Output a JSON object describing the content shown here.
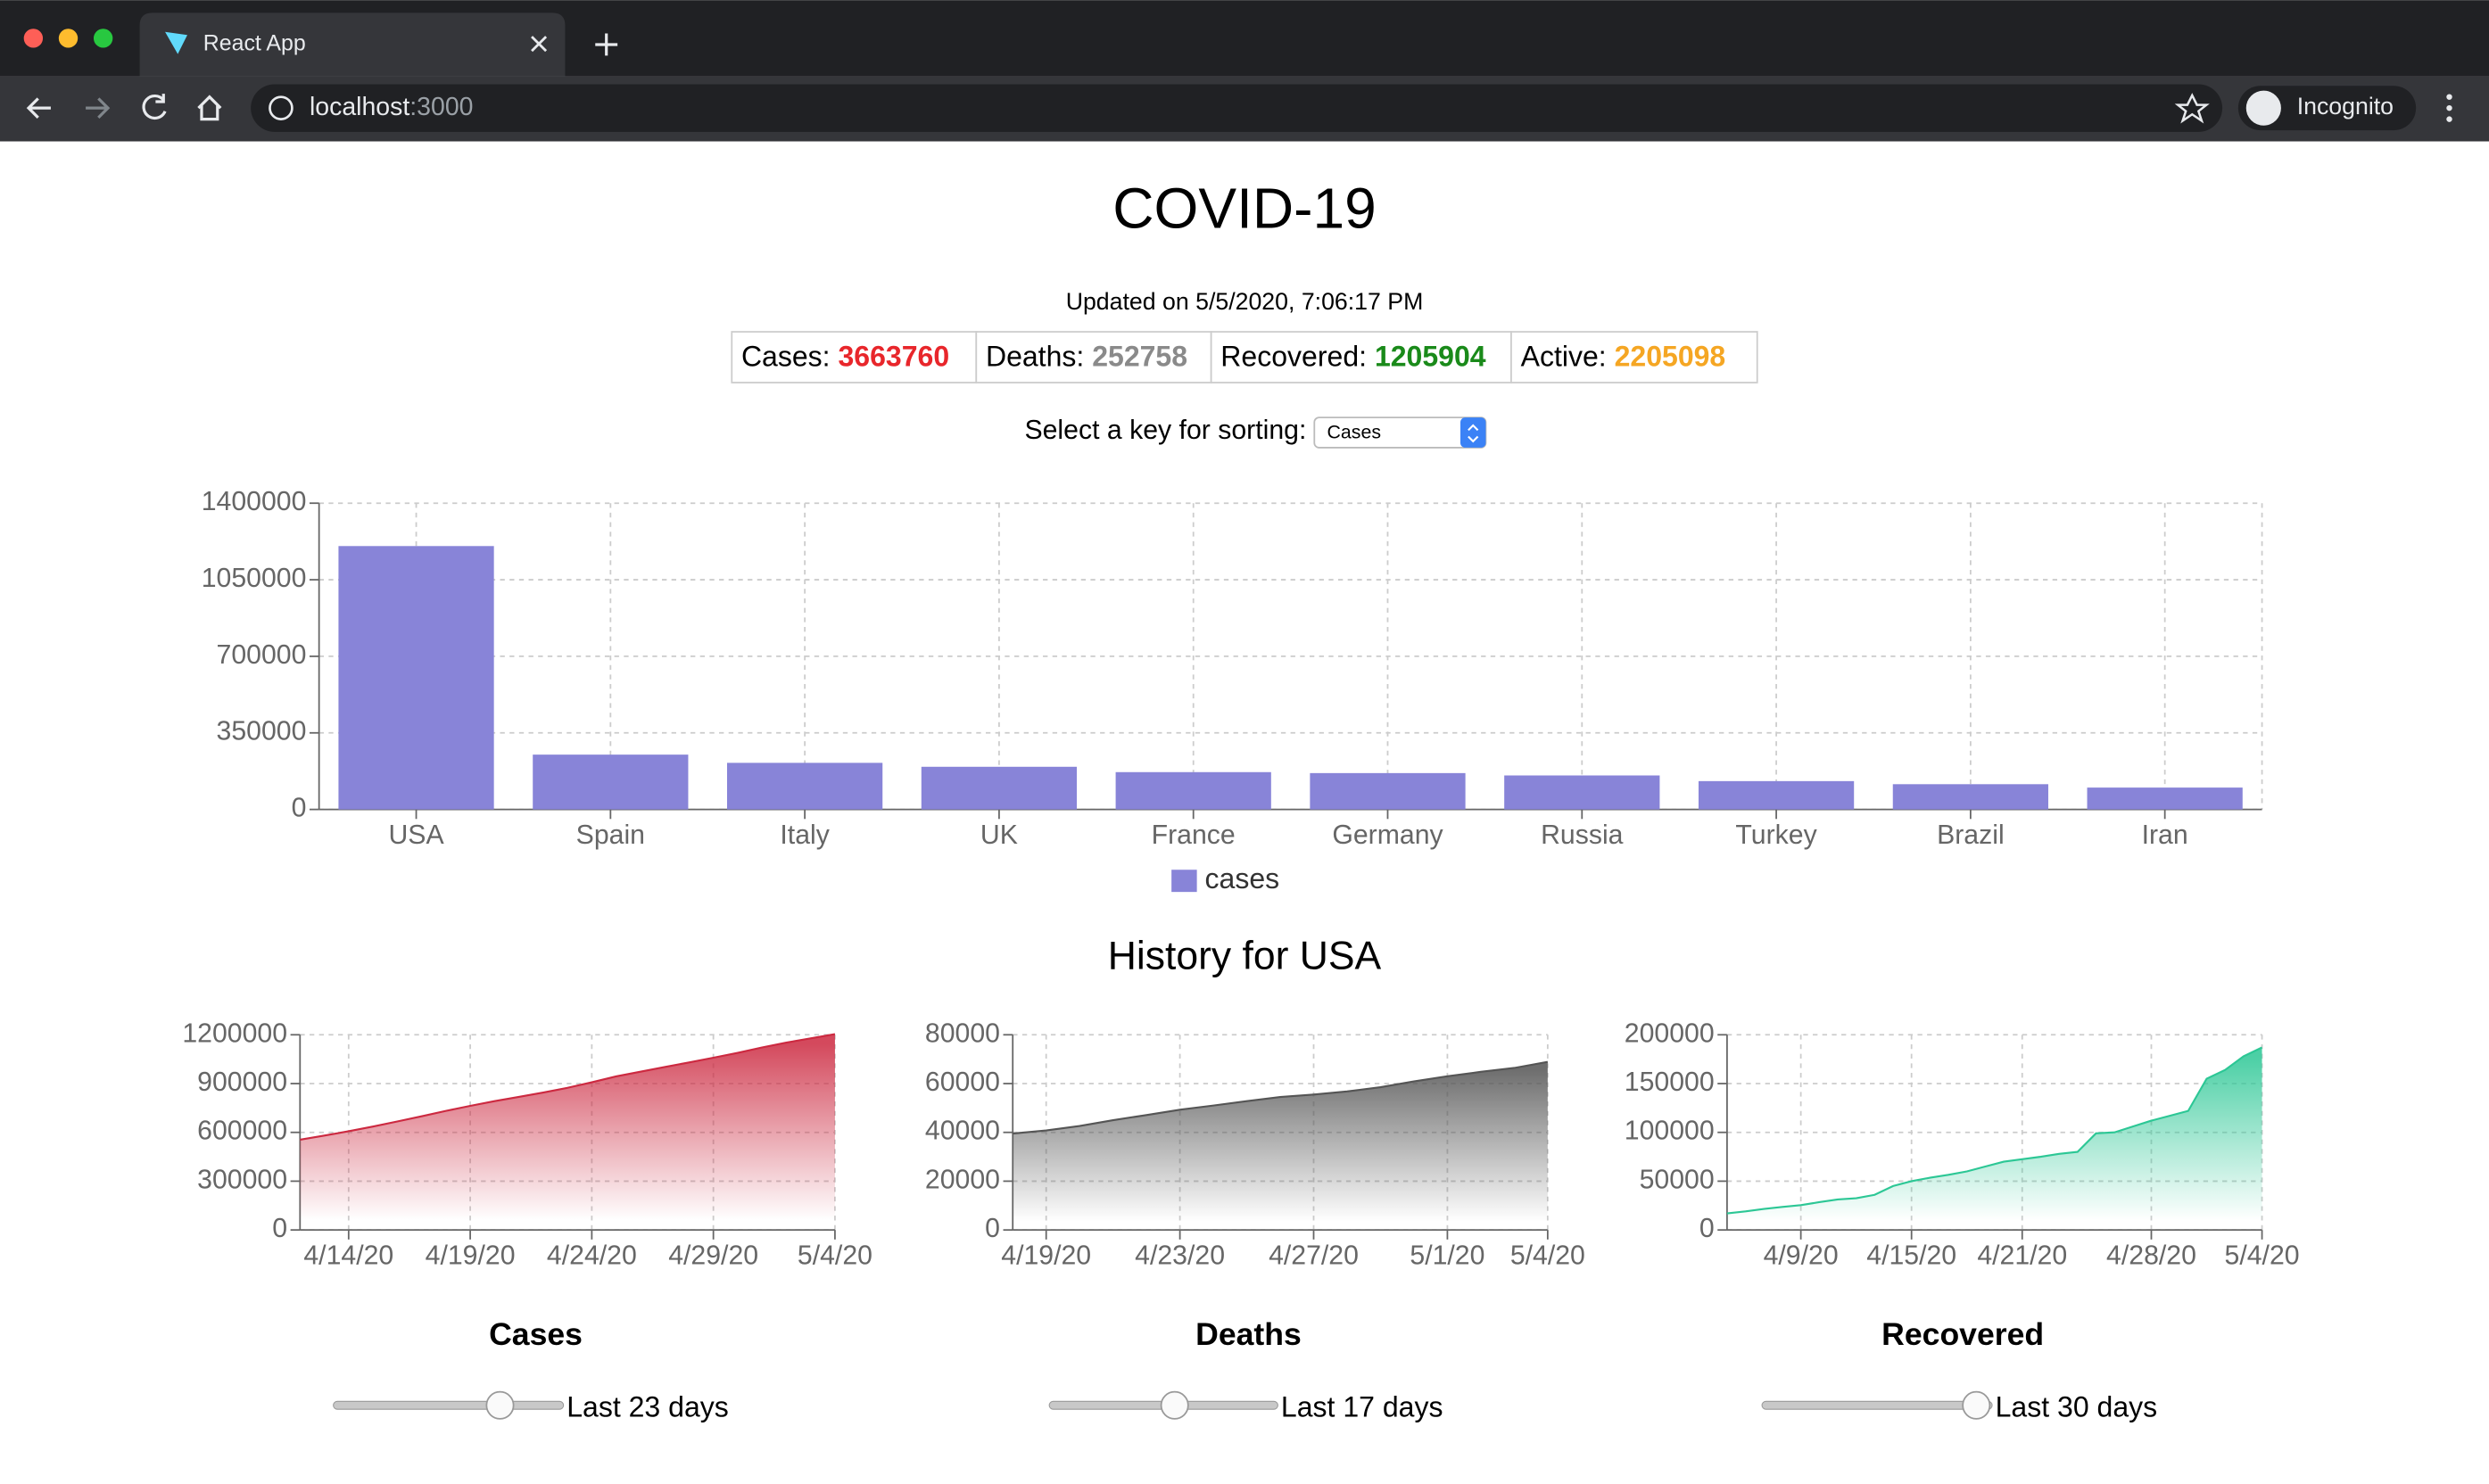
{
  "browser": {
    "tab_title": "React App",
    "url_host": "localhost",
    "url_port": ":3000",
    "profile": "Incognito"
  },
  "header": {
    "title": "COVID-19",
    "updated": "Updated on 5/5/2020, 7:06:17 PM"
  },
  "summary": [
    {
      "label": "Cases:",
      "value": "3663760",
      "color": "#e8262b"
    },
    {
      "label": "Deaths:",
      "value": "252758",
      "color": "#8a8a8a"
    },
    {
      "label": "Recovered:",
      "value": "1205904",
      "color": "#1a8a1a"
    },
    {
      "label": "Active:",
      "value": "2205098",
      "color": "#f5a623"
    }
  ],
  "sorting": {
    "label": "Select a key for sorting:",
    "selected": "Cases"
  },
  "history_title": "History for USA",
  "chart_data": [
    {
      "type": "bar",
      "categories": [
        "USA",
        "Spain",
        "Italy",
        "UK",
        "France",
        "Germany",
        "Russia",
        "Turkey",
        "Brazil",
        "Iran"
      ],
      "series": [
        {
          "name": "cases",
          "color": "#8884d8",
          "values": [
            1204000,
            250561,
            213013,
            194990,
            170551,
            166152,
            155370,
            129491,
            115455,
            99970
          ]
        }
      ],
      "ylim": [
        0,
        1400000
      ],
      "yticks": [
        0,
        350000,
        700000,
        1050000,
        1400000
      ],
      "grid": true,
      "legend": "bottom"
    },
    {
      "type": "area",
      "title": "Cases",
      "annotation": "Last 23 days",
      "categories": [
        null,
        null,
        "4/14/20",
        null,
        null,
        null,
        null,
        "4/19/20",
        null,
        null,
        null,
        null,
        "4/24/20",
        null,
        null,
        null,
        null,
        "4/29/20",
        null,
        null,
        null,
        null,
        "5/4/20"
      ],
      "series": [
        {
          "name": "Cases",
          "color": "#cc2940",
          "values": [
            555000,
            580000,
            607000,
            636000,
            667000,
            699000,
            732000,
            763000,
            792000,
            818000,
            845000,
            874000,
            908000,
            944000,
            973000,
            1002000,
            1030000,
            1059000,
            1089000,
            1122000,
            1152000,
            1178000,
            1204000
          ]
        }
      ],
      "ylim": [
        0,
        1200000
      ],
      "yticks": [
        0,
        300000,
        600000,
        900000,
        1200000
      ],
      "grid": true
    },
    {
      "type": "area",
      "title": "Deaths",
      "annotation": "Last 17 days",
      "categories": [
        null,
        "4/19/20",
        null,
        null,
        null,
        "4/23/20",
        null,
        null,
        null,
        "4/27/20",
        null,
        null,
        null,
        "5/1/20",
        null,
        null,
        "5/4/20"
      ],
      "series": [
        {
          "name": "Deaths",
          "color": "#555555",
          "values": [
            39500,
            40800,
            42600,
            45000,
            47100,
            49300,
            51000,
            52800,
            54500,
            55500,
            56800,
            58500,
            60900,
            63000,
            64800,
            66400,
            68900
          ]
        }
      ],
      "ylim": [
        0,
        80000
      ],
      "yticks": [
        0,
        20000,
        40000,
        60000,
        80000
      ],
      "grid": true
    },
    {
      "type": "area",
      "title": "Recovered",
      "annotation": "Last 30 days",
      "categories": [
        null,
        null,
        null,
        null,
        "4/9/20",
        null,
        null,
        null,
        null,
        null,
        "4/15/20",
        null,
        null,
        null,
        null,
        null,
        "4/21/20",
        null,
        null,
        null,
        null,
        null,
        null,
        "4/28/20",
        null,
        null,
        null,
        null,
        null,
        "5/4/20"
      ],
      "series": [
        {
          "name": "Recovered",
          "color": "#2cc795",
          "values": [
            17000,
            19000,
            21500,
            23600,
            25400,
            28500,
            31300,
            32500,
            36000,
            45000,
            50000,
            53500,
            56500,
            60000,
            65000,
            70000,
            72500,
            75000,
            78000,
            80000,
            99000,
            100000,
            106000,
            112000,
            117000,
            122000,
            155000,
            164000,
            178000,
            187000
          ]
        }
      ],
      "ylim": [
        0,
        200000
      ],
      "yticks": [
        0,
        50000,
        100000,
        150000,
        200000
      ],
      "grid": true
    }
  ]
}
